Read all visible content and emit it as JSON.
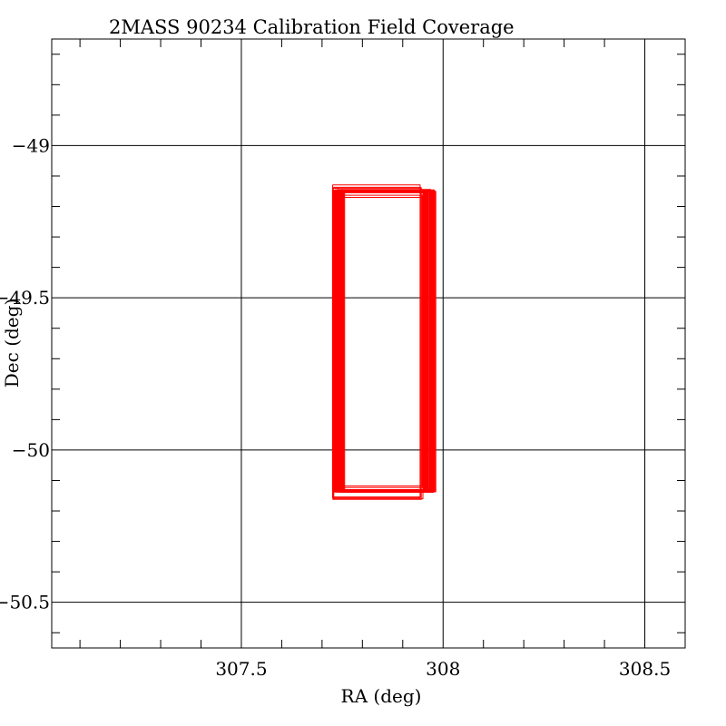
{
  "chart_data": {
    "type": "line",
    "title": "2MASS 90234 Calibration Field Coverage",
    "xlabel": "RA (deg)",
    "ylabel": "Dec (deg)",
    "xlim": [
      307.03,
      308.6
    ],
    "ylim": [
      -50.65,
      -48.65
    ],
    "x_ticks": [
      307.5,
      308,
      308.5
    ],
    "x_tick_labels": [
      "307.5",
      "308",
      "308.5"
    ],
    "y_ticks": [
      -49,
      -49.5,
      -50,
      -50.5
    ],
    "y_tick_labels": [
      "−49",
      "−49.5",
      "−50",
      "−50.5"
    ],
    "x_minor_step": 0.1,
    "y_minor_step": 0.1,
    "grid": true,
    "series_color": "#ff0000",
    "series": [
      {
        "values": [
          [
            307.726,
            -49.147
          ],
          [
            307.951,
            -49.147
          ],
          [
            307.951,
            -50.133
          ],
          [
            307.726,
            -50.133
          ],
          [
            307.726,
            -49.147
          ]
        ]
      },
      {
        "values": [
          [
            307.728,
            -49.15
          ],
          [
            307.953,
            -49.15
          ],
          [
            307.953,
            -50.136
          ],
          [
            307.728,
            -50.136
          ],
          [
            307.728,
            -49.15
          ]
        ]
      },
      {
        "values": [
          [
            307.73,
            -49.152
          ],
          [
            307.956,
            -49.152
          ],
          [
            307.956,
            -50.138
          ],
          [
            307.73,
            -50.138
          ],
          [
            307.73,
            -49.152
          ]
        ]
      },
      {
        "values": [
          [
            307.732,
            -49.145
          ],
          [
            307.958,
            -49.145
          ],
          [
            307.958,
            -50.131
          ],
          [
            307.732,
            -50.131
          ],
          [
            307.732,
            -49.145
          ]
        ]
      },
      {
        "values": [
          [
            307.735,
            -49.148
          ],
          [
            307.96,
            -49.148
          ],
          [
            307.96,
            -50.134
          ],
          [
            307.735,
            -50.134
          ],
          [
            307.735,
            -49.148
          ]
        ]
      },
      {
        "values": [
          [
            307.737,
            -49.151
          ],
          [
            307.962,
            -49.151
          ],
          [
            307.962,
            -50.137
          ],
          [
            307.737,
            -50.137
          ],
          [
            307.737,
            -49.151
          ]
        ]
      },
      {
        "values": [
          [
            307.739,
            -49.146
          ],
          [
            307.965,
            -49.146
          ],
          [
            307.965,
            -50.132
          ],
          [
            307.739,
            -50.132
          ],
          [
            307.739,
            -49.146
          ]
        ]
      },
      {
        "values": [
          [
            307.741,
            -49.149
          ],
          [
            307.967,
            -49.149
          ],
          [
            307.967,
            -50.135
          ],
          [
            307.741,
            -50.135
          ],
          [
            307.741,
            -49.149
          ]
        ]
      },
      {
        "values": [
          [
            307.743,
            -49.144
          ],
          [
            307.969,
            -49.144
          ],
          [
            307.969,
            -50.13
          ],
          [
            307.743,
            -50.13
          ],
          [
            307.743,
            -49.144
          ]
        ]
      },
      {
        "values": [
          [
            307.745,
            -49.147
          ],
          [
            307.971,
            -49.147
          ],
          [
            307.971,
            -50.133
          ],
          [
            307.745,
            -50.133
          ],
          [
            307.745,
            -49.147
          ]
        ]
      },
      {
        "values": [
          [
            307.748,
            -49.15
          ],
          [
            307.974,
            -49.15
          ],
          [
            307.974,
            -50.136
          ],
          [
            307.748,
            -50.136
          ],
          [
            307.748,
            -49.15
          ]
        ]
      },
      {
        "values": [
          [
            307.75,
            -49.153
          ],
          [
            307.976,
            -49.153
          ],
          [
            307.976,
            -50.139
          ],
          [
            307.75,
            -50.139
          ],
          [
            307.75,
            -49.153
          ]
        ]
      },
      {
        "values": [
          [
            307.752,
            -49.146
          ],
          [
            307.978,
            -49.146
          ],
          [
            307.978,
            -50.132
          ],
          [
            307.752,
            -50.132
          ],
          [
            307.752,
            -49.146
          ]
        ]
      },
      {
        "values": [
          [
            307.754,
            -49.149
          ],
          [
            307.98,
            -49.149
          ],
          [
            307.98,
            -50.135
          ],
          [
            307.754,
            -50.135
          ],
          [
            307.754,
            -49.149
          ]
        ]
      },
      {
        "values": [
          [
            307.756,
            -49.151
          ],
          [
            307.982,
            -49.151
          ],
          [
            307.982,
            -50.137
          ],
          [
            307.756,
            -50.137
          ],
          [
            307.756,
            -49.151
          ]
        ]
      },
      {
        "values": [
          [
            307.727,
            -49.148
          ],
          [
            307.952,
            -49.148
          ],
          [
            307.952,
            -50.135
          ],
          [
            307.727,
            -50.135
          ],
          [
            307.727,
            -49.148
          ]
        ]
      },
      {
        "values": [
          [
            307.731,
            -49.146
          ],
          [
            307.957,
            -49.146
          ],
          [
            307.957,
            -50.132
          ],
          [
            307.731,
            -50.132
          ],
          [
            307.731,
            -49.146
          ]
        ]
      },
      {
        "values": [
          [
            307.736,
            -49.152
          ],
          [
            307.961,
            -49.152
          ],
          [
            307.961,
            -50.138
          ],
          [
            307.736,
            -50.138
          ],
          [
            307.736,
            -49.152
          ]
        ]
      },
      {
        "values": [
          [
            307.74,
            -49.147
          ],
          [
            307.966,
            -49.147
          ],
          [
            307.966,
            -50.133
          ],
          [
            307.74,
            -50.133
          ],
          [
            307.74,
            -49.147
          ]
        ]
      },
      {
        "values": [
          [
            307.744,
            -49.15
          ],
          [
            307.97,
            -49.15
          ],
          [
            307.97,
            -50.136
          ],
          [
            307.744,
            -50.136
          ],
          [
            307.744,
            -49.15
          ]
        ]
      },
      {
        "values": [
          [
            307.749,
            -49.148
          ],
          [
            307.975,
            -49.148
          ],
          [
            307.975,
            -50.134
          ],
          [
            307.749,
            -50.134
          ],
          [
            307.749,
            -49.148
          ]
        ]
      },
      {
        "values": [
          [
            307.753,
            -49.151
          ],
          [
            307.979,
            -49.151
          ],
          [
            307.979,
            -50.137
          ],
          [
            307.753,
            -50.137
          ],
          [
            307.753,
            -49.151
          ]
        ]
      },
      {
        "values": [
          [
            307.729,
            -49.149
          ],
          [
            307.954,
            -49.149
          ],
          [
            307.954,
            -50.134
          ],
          [
            307.729,
            -50.134
          ],
          [
            307.729,
            -49.149
          ]
        ]
      },
      {
        "values": [
          [
            307.734,
            -49.147
          ],
          [
            307.959,
            -49.147
          ],
          [
            307.959,
            -50.133
          ],
          [
            307.734,
            -50.133
          ],
          [
            307.734,
            -49.147
          ]
        ]
      },
      {
        "values": [
          [
            307.738,
            -49.15
          ],
          [
            307.963,
            -49.15
          ],
          [
            307.963,
            -50.136
          ],
          [
            307.738,
            -50.136
          ],
          [
            307.738,
            -49.15
          ]
        ]
      },
      {
        "values": [
          [
            307.747,
            -49.149
          ],
          [
            307.972,
            -49.149
          ],
          [
            307.972,
            -50.135
          ],
          [
            307.747,
            -50.135
          ],
          [
            307.747,
            -49.149
          ]
        ]
      },
      {
        "values": [
          [
            307.751,
            -49.146
          ],
          [
            307.977,
            -49.146
          ],
          [
            307.977,
            -50.132
          ],
          [
            307.751,
            -50.132
          ],
          [
            307.751,
            -49.146
          ]
        ]
      },
      {
        "values": [
          [
            307.742,
            -49.152
          ],
          [
            307.968,
            -49.152
          ],
          [
            307.968,
            -50.138
          ],
          [
            307.742,
            -50.138
          ],
          [
            307.742,
            -49.152
          ]
        ]
      },
      {
        "values": [
          [
            307.733,
            -49.15
          ],
          [
            307.955,
            -49.15
          ],
          [
            307.955,
            -50.136
          ],
          [
            307.733,
            -50.136
          ],
          [
            307.733,
            -49.15
          ]
        ]
      },
      {
        "values": [
          [
            307.746,
            -49.148
          ],
          [
            307.973,
            -49.148
          ],
          [
            307.973,
            -50.134
          ],
          [
            307.746,
            -50.134
          ],
          [
            307.746,
            -49.148
          ]
        ]
      },
      {
        "values": [
          [
            307.726,
            -49.129
          ],
          [
            307.943,
            -49.129
          ],
          [
            307.943,
            -50.157
          ],
          [
            307.726,
            -50.157
          ],
          [
            307.726,
            -49.129
          ]
        ]
      },
      {
        "values": [
          [
            307.728,
            -49.137
          ],
          [
            307.945,
            -49.137
          ],
          [
            307.945,
            -50.154
          ],
          [
            307.728,
            -50.154
          ],
          [
            307.728,
            -49.137
          ]
        ]
      },
      {
        "values": [
          [
            307.734,
            -49.163
          ],
          [
            307.948,
            -49.163
          ],
          [
            307.948,
            -50.118
          ],
          [
            307.734,
            -50.118
          ],
          [
            307.734,
            -49.163
          ]
        ]
      },
      {
        "values": [
          [
            307.737,
            -49.17
          ],
          [
            307.949,
            -49.17
          ],
          [
            307.949,
            -50.123
          ],
          [
            307.737,
            -50.123
          ],
          [
            307.737,
            -49.17
          ]
        ]
      },
      {
        "values": [
          [
            307.729,
            -49.155
          ],
          [
            307.95,
            -49.155
          ],
          [
            307.95,
            -50.16
          ],
          [
            307.729,
            -50.16
          ],
          [
            307.729,
            -49.155
          ]
        ]
      },
      {
        "values": [
          [
            307.727,
            -49.14
          ],
          [
            307.946,
            -49.14
          ],
          [
            307.946,
            -50.162
          ],
          [
            307.727,
            -50.162
          ],
          [
            307.727,
            -49.14
          ]
        ]
      },
      {
        "values": [
          [
            307.727,
            -49.14
          ],
          [
            307.74,
            -49.14
          ],
          [
            307.74,
            -49.627
          ],
          [
            307.727,
            -49.627
          ],
          [
            307.727,
            -49.14
          ]
        ]
      },
      {
        "values": [
          [
            307.74,
            -49.66
          ],
          [
            307.742,
            -49.66
          ],
          [
            307.742,
            -50.13
          ],
          [
            307.74,
            -50.13
          ],
          [
            307.74,
            -49.66
          ]
        ]
      },
      {
        "values": [
          [
            307.953,
            -49.63
          ],
          [
            307.958,
            -49.63
          ],
          [
            307.958,
            -50.12
          ],
          [
            307.953,
            -50.12
          ],
          [
            307.953,
            -49.63
          ]
        ]
      }
    ]
  }
}
